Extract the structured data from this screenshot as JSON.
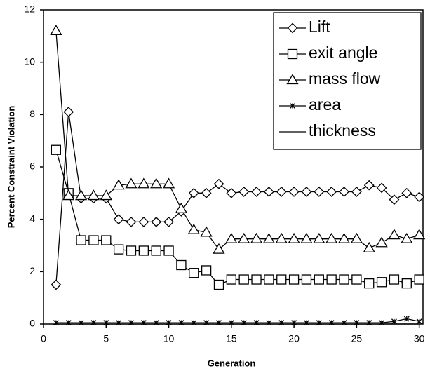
{
  "chart_data": {
    "type": "line",
    "xlabel": "Generation",
    "ylabel": "Percent Constraint Violation",
    "x": [
      1,
      2,
      3,
      4,
      5,
      6,
      7,
      8,
      9,
      10,
      11,
      12,
      13,
      14,
      15,
      16,
      17,
      18,
      19,
      20,
      21,
      22,
      23,
      24,
      25,
      26,
      27,
      28,
      29,
      30
    ],
    "series": [
      {
        "name": "Lift",
        "color": "#000000",
        "marker": "diamond",
        "values": [
          1.5,
          8.1,
          4.8,
          4.8,
          4.8,
          4.0,
          3.9,
          3.9,
          3.9,
          3.9,
          4.3,
          5.0,
          5.0,
          5.35,
          5.0,
          5.05,
          5.05,
          5.05,
          5.05,
          5.05,
          5.05,
          5.05,
          5.05,
          5.05,
          5.05,
          5.3,
          5.2,
          4.75,
          5.0,
          4.85
        ]
      },
      {
        "name": "exit angle",
        "color": "#000000",
        "marker": "square",
        "values": [
          6.65,
          5.0,
          3.2,
          3.2,
          3.2,
          2.85,
          2.8,
          2.8,
          2.8,
          2.8,
          2.25,
          1.95,
          2.05,
          1.5,
          1.7,
          1.7,
          1.7,
          1.7,
          1.7,
          1.7,
          1.7,
          1.7,
          1.7,
          1.7,
          1.7,
          1.55,
          1.6,
          1.7,
          1.55,
          1.7
        ]
      },
      {
        "name": "mass flow",
        "color": "#000000",
        "marker": "triangle",
        "values": [
          11.2,
          4.9,
          4.9,
          4.9,
          4.9,
          5.3,
          5.35,
          5.35,
          5.35,
          5.35,
          4.4,
          3.6,
          3.5,
          2.85,
          3.25,
          3.25,
          3.25,
          3.25,
          3.25,
          3.25,
          3.25,
          3.25,
          3.25,
          3.25,
          3.25,
          2.9,
          3.1,
          3.4,
          3.25,
          3.4
        ]
      },
      {
        "name": "area",
        "color": "#000000",
        "marker": "asterisk",
        "values": [
          0.05,
          0.05,
          0.05,
          0.05,
          0.05,
          0.05,
          0.05,
          0.05,
          0.05,
          0.05,
          0.05,
          0.05,
          0.05,
          0.05,
          0.05,
          0.05,
          0.05,
          0.05,
          0.05,
          0.05,
          0.05,
          0.05,
          0.05,
          0.05,
          0.05,
          0.05,
          0.05,
          0.1,
          0.2,
          0.1
        ]
      },
      {
        "name": "thickness",
        "color": "#000000",
        "marker": "none",
        "values": [
          0,
          0,
          0,
          0,
          0,
          0,
          0,
          0,
          0,
          0,
          0,
          0,
          0,
          0,
          0,
          0,
          0,
          0,
          0,
          0,
          0,
          0,
          0,
          0,
          0,
          0,
          0,
          0,
          0,
          0
        ]
      }
    ],
    "xlim": [
      0,
      30.3
    ],
    "xticks": [
      0,
      5,
      10,
      15,
      20,
      25,
      30
    ],
    "ylim": [
      0,
      12
    ],
    "yticks": [
      0,
      2,
      4,
      6,
      8,
      10,
      12
    ],
    "legend": "top-right"
  }
}
